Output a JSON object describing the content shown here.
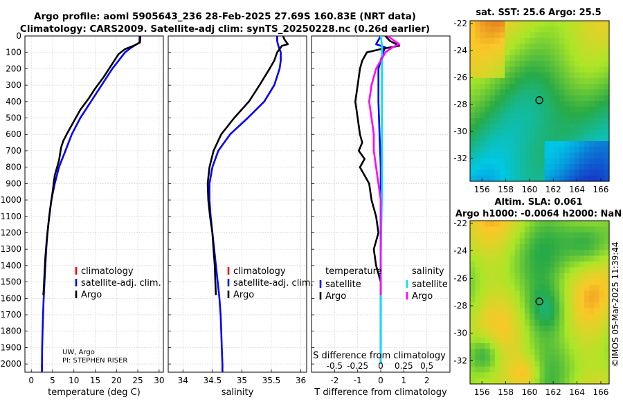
{
  "header": {
    "line1": "Argo profile: aoml 5905643_236 28-Feb-2025 27.69S 160.83E (NRT data)",
    "line2": "Climatology: CARS2009. Satellite-adj clim: synTS_20250228.nc (0.26d earlier)"
  },
  "credit": "©IMOS 05-Mar-2025 11:39:44",
  "chart_data": [
    {
      "id": "temperature",
      "type": "line",
      "xlabel": "temperature (deg C)",
      "xlim": [
        -1.5,
        31
      ],
      "ylim": [
        0,
        2050
      ],
      "y_inverted": true,
      "xticks": [
        0,
        5,
        10,
        15,
        20,
        25,
        30
      ],
      "yticks": [
        0,
        100,
        200,
        300,
        400,
        500,
        600,
        700,
        800,
        900,
        1000,
        1100,
        1200,
        1300,
        1400,
        1500,
        1600,
        1700,
        1800,
        1900,
        2000
      ],
      "grid": true,
      "legend": [
        "climatology",
        "satellite-adj. clim.",
        "Argo"
      ],
      "annotation": [
        "UW, Argo",
        "PI: STEPHEN RISER"
      ],
      "series": [
        {
          "name": "climatology",
          "color": "#ff0000",
          "points": [
            [
              25.4,
              0
            ],
            [
              25.4,
              30
            ],
            [
              2.5,
              2000
            ],
            [
              2.5,
              2050
            ]
          ]
        },
        {
          "name": "satellite-adj. clim.",
          "color": "#0000ff",
          "points": [
            [
              25.5,
              0
            ],
            [
              25.4,
              40
            ],
            [
              23.5,
              70
            ],
            [
              22,
              100
            ],
            [
              20.5,
              150
            ],
            [
              19,
              200
            ],
            [
              16.5,
              300
            ],
            [
              14,
              400
            ],
            [
              11.5,
              500
            ],
            [
              9.5,
              600
            ],
            [
              8,
              700
            ],
            [
              6.5,
              800
            ],
            [
              5.5,
              900
            ],
            [
              4.7,
              1000
            ],
            [
              4.2,
              1100
            ],
            [
              3.8,
              1200
            ],
            [
              3.5,
              1300
            ],
            [
              3.3,
              1400
            ],
            [
              3.1,
              1500
            ],
            [
              2.9,
              1600
            ],
            [
              2.75,
              1700
            ],
            [
              2.65,
              1800
            ],
            [
              2.55,
              1900
            ],
            [
              2.5,
              2000
            ],
            [
              2.5,
              2050
            ]
          ]
        },
        {
          "name": "Argo",
          "color": "#000000",
          "points": [
            [
              25.6,
              0
            ],
            [
              25.5,
              40
            ],
            [
              24,
              60
            ],
            [
              22,
              80
            ],
            [
              20.5,
              110
            ],
            [
              19.5,
              150
            ],
            [
              18.5,
              190
            ],
            [
              17,
              250
            ],
            [
              15,
              320
            ],
            [
              13.5,
              380
            ],
            [
              11.5,
              450
            ],
            [
              10,
              520
            ],
            [
              8.5,
              590
            ],
            [
              7.5,
              640
            ],
            [
              7,
              680
            ],
            [
              6.5,
              760
            ],
            [
              5.5,
              850
            ],
            [
              5,
              950
            ],
            [
              4.4,
              1060
            ],
            [
              4,
              1150
            ],
            [
              3.6,
              1250
            ],
            [
              3.3,
              1350
            ],
            [
              3.1,
              1450
            ],
            [
              2.9,
              1550
            ],
            [
              2.8,
              1580
            ]
          ]
        }
      ]
    },
    {
      "id": "salinity",
      "type": "line",
      "xlabel": "salinity",
      "xlim": [
        33.75,
        36.1
      ],
      "ylim": [
        0,
        2050
      ],
      "y_inverted": true,
      "xticks": [
        34,
        34.5,
        35,
        35.5,
        36
      ],
      "grid": true,
      "legend": [
        "climatology",
        "satellite-adj. clim.",
        "Argo"
      ],
      "series": [
        {
          "name": "climatology",
          "color": "#ff0000",
          "points": [
            [
              35.6,
              0
            ],
            [
              35.6,
              30
            ],
            [
              34.67,
              2000
            ],
            [
              34.67,
              2050
            ]
          ]
        },
        {
          "name": "satellite-adj. clim.",
          "color": "#0000ff",
          "points": [
            [
              35.6,
              0
            ],
            [
              35.6,
              30
            ],
            [
              35.62,
              60
            ],
            [
              35.66,
              100
            ],
            [
              35.66,
              150
            ],
            [
              35.64,
              200
            ],
            [
              35.55,
              300
            ],
            [
              35.38,
              400
            ],
            [
              35.1,
              500
            ],
            [
              34.8,
              600
            ],
            [
              34.6,
              700
            ],
            [
              34.5,
              800
            ],
            [
              34.45,
              900
            ],
            [
              34.45,
              1000
            ],
            [
              34.47,
              1100
            ],
            [
              34.5,
              1200
            ],
            [
              34.53,
              1300
            ],
            [
              34.56,
              1400
            ],
            [
              34.59,
              1500
            ],
            [
              34.62,
              1600
            ],
            [
              34.64,
              1700
            ],
            [
              34.65,
              1800
            ],
            [
              34.66,
              1900
            ],
            [
              34.67,
              2000
            ],
            [
              34.67,
              2050
            ]
          ]
        },
        {
          "name": "Argo",
          "color": "#000000",
          "points": [
            [
              35.7,
              0
            ],
            [
              35.72,
              20
            ],
            [
              35.78,
              50
            ],
            [
              35.68,
              60
            ],
            [
              35.6,
              100
            ],
            [
              35.55,
              150
            ],
            [
              35.47,
              200
            ],
            [
              35.3,
              300
            ],
            [
              35.12,
              400
            ],
            [
              34.87,
              500
            ],
            [
              34.65,
              600
            ],
            [
              34.52,
              700
            ],
            [
              34.45,
              800
            ],
            [
              34.42,
              900
            ],
            [
              34.43,
              1000
            ],
            [
              34.46,
              1100
            ],
            [
              34.5,
              1200
            ],
            [
              34.52,
              1300
            ],
            [
              34.54,
              1400
            ],
            [
              34.55,
              1500
            ],
            [
              34.56,
              1580
            ]
          ]
        }
      ]
    },
    {
      "id": "difference",
      "type": "line",
      "xlabel": "T difference from climatology",
      "top_xlabel": "S difference from climatology",
      "xlim": [
        -3,
        3
      ],
      "ylim": [
        0,
        2050
      ],
      "y_inverted": true,
      "xticks": [
        -2,
        -1,
        0,
        1,
        2
      ],
      "top_xtick_labels": [
        "-0.5",
        "-0.25",
        "0",
        "0.25",
        "0.5"
      ],
      "grid": true,
      "legend_titles": [
        "temperature",
        "salinity"
      ],
      "legend": [
        "satellite",
        "Argo",
        "satellite",
        "Argo"
      ],
      "series": [
        {
          "name": "temperature satellite",
          "color": "#0000ff",
          "points": [
            [
              0,
              0
            ],
            [
              -0.2,
              50
            ],
            [
              0.2,
              70
            ],
            [
              0.1,
              100
            ],
            [
              0,
              150
            ],
            [
              -0.1,
              200
            ],
            [
              -0.1,
              400
            ],
            [
              -0.05,
              600
            ],
            [
              0,
              800
            ],
            [
              0,
              1000
            ],
            [
              0,
              1200
            ],
            [
              0,
              1400
            ],
            [
              0,
              1600
            ],
            [
              0,
              1800
            ],
            [
              0,
              2000
            ]
          ]
        },
        {
          "name": "temperature Argo",
          "color": "#000000",
          "points": [
            [
              0.2,
              0
            ],
            [
              0.4,
              30
            ],
            [
              0.8,
              60
            ],
            [
              0,
              80
            ],
            [
              -0.6,
              100
            ],
            [
              -0.8,
              150
            ],
            [
              -0.9,
              200
            ],
            [
              -1.0,
              300
            ],
            [
              -1.1,
              400
            ],
            [
              -1.0,
              500
            ],
            [
              -0.9,
              600
            ],
            [
              -0.8,
              650
            ],
            [
              -0.95,
              700
            ],
            [
              -0.7,
              750
            ],
            [
              -0.9,
              800
            ],
            [
              -0.5,
              900
            ],
            [
              -0.4,
              1000
            ],
            [
              -0.2,
              1100
            ],
            [
              -0.1,
              1200
            ],
            [
              -0.3,
              1300
            ],
            [
              -0.2,
              1400
            ],
            [
              0,
              1500
            ],
            [
              0,
              1580
            ]
          ]
        },
        {
          "name": "salinity satellite",
          "color": "#00e0ff",
          "points": [
            [
              0,
              0
            ],
            [
              0.05,
              50
            ],
            [
              0.05,
              100
            ],
            [
              0.05,
              200
            ],
            [
              0.05,
              400
            ],
            [
              0.05,
              600
            ],
            [
              0.05,
              800
            ],
            [
              0.05,
              1000
            ],
            [
              0.02,
              1200
            ],
            [
              0,
              1400
            ],
            [
              0,
              1600
            ],
            [
              0,
              1800
            ],
            [
              0,
              2000
            ]
          ]
        },
        {
          "name": "salinity Argo",
          "color": "#ff00ff",
          "points": [
            [
              0.3,
              0
            ],
            [
              0.8,
              50
            ],
            [
              0.5,
              70
            ],
            [
              0.2,
              100
            ],
            [
              0,
              150
            ],
            [
              -0.2,
              200
            ],
            [
              -0.4,
              300
            ],
            [
              -0.5,
              400
            ],
            [
              -0.4,
              500
            ],
            [
              -0.3,
              600
            ],
            [
              -0.3,
              700
            ],
            [
              -0.2,
              800
            ],
            [
              -0.1,
              900
            ],
            [
              0,
              1000
            ],
            [
              0,
              1100
            ],
            [
              0,
              1200
            ],
            [
              0,
              1400
            ],
            [
              0,
              1580
            ]
          ]
        }
      ]
    },
    {
      "id": "sst_map",
      "type": "heatmap",
      "title": "sat. SST: 25.6 Argo: 25.5",
      "xlim": [
        155,
        166.7
      ],
      "ylim": [
        -33.7,
        -21.8
      ],
      "xticks": [
        156,
        158,
        160,
        162,
        164,
        166
      ],
      "yticks": [
        -22,
        -24,
        -26,
        -28,
        -30,
        -32
      ],
      "float_position": [
        160.83,
        -27.69
      ]
    },
    {
      "id": "sla_map",
      "type": "heatmap",
      "title": "Altim. SLA: 0.061",
      "subtitle": "Argo h1000: -0.0064 h2000: NaN",
      "xlim": [
        155,
        166.7
      ],
      "ylim": [
        -33.7,
        -21.8
      ],
      "xticks": [
        156,
        158,
        160,
        162,
        164,
        166
      ],
      "yticks": [
        -22,
        -24,
        -26,
        -28,
        -30,
        -32
      ],
      "float_position": [
        160.83,
        -27.69
      ]
    }
  ]
}
